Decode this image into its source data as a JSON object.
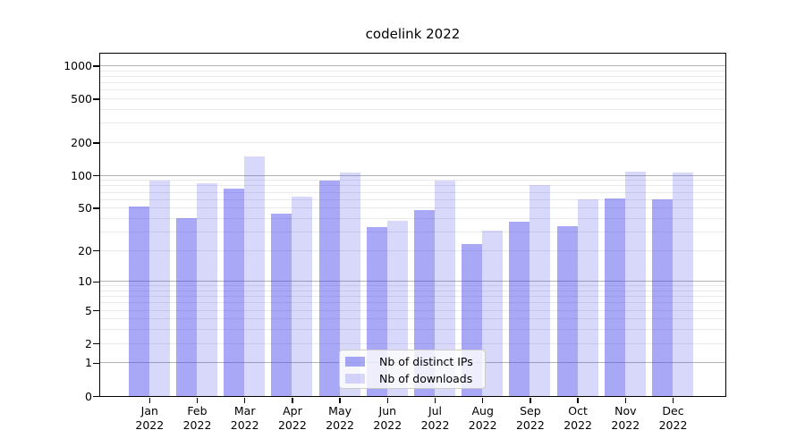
{
  "title": "codelink 2022",
  "colors": {
    "bar_ips_hex": "#a8a8f2",
    "bar_downloads_hex": "#d8d8f8",
    "bar_base": "#4646eb",
    "major_grid": "#b2b2b2",
    "minor_grid": "#e9e9ec",
    "spine": "#000000",
    "legend_border": "#cccccc"
  },
  "chart_data": {
    "type": "bar",
    "title": "codelink 2022",
    "categories": [
      "Jan 2022",
      "Feb 2022",
      "Mar 2022",
      "Apr 2022",
      "May 2022",
      "Jun 2022",
      "Jul 2022",
      "Aug 2022",
      "Sep 2022",
      "Oct 2022",
      "Nov 2022",
      "Dec 2022"
    ],
    "series": [
      {
        "name": "Nb of distinct IPs",
        "color": "#a8a8f2",
        "fill": "rgba(70,70,235,0.47)",
        "values": [
          52,
          40,
          75,
          44,
          90,
          33,
          48,
          23,
          37,
          34,
          61,
          60
        ]
      },
      {
        "name": "Nb of downloads",
        "color": "#d8d8f8",
        "fill": "rgba(70,70,235,0.21)",
        "values": [
          90,
          85,
          150,
          64,
          107,
          38,
          90,
          31,
          81,
          60,
          108,
          106
        ]
      }
    ],
    "xlabel": "",
    "ylabel": "",
    "yscale": "log1p",
    "ylim": [
      0,
      1300
    ],
    "y_ticks": [
      1000,
      500,
      200,
      100,
      50,
      20,
      10,
      5,
      2,
      1,
      0
    ],
    "y_major_gridlines": [
      1,
      10,
      100,
      1000
    ],
    "grid": true,
    "legend_position": "lower center"
  }
}
